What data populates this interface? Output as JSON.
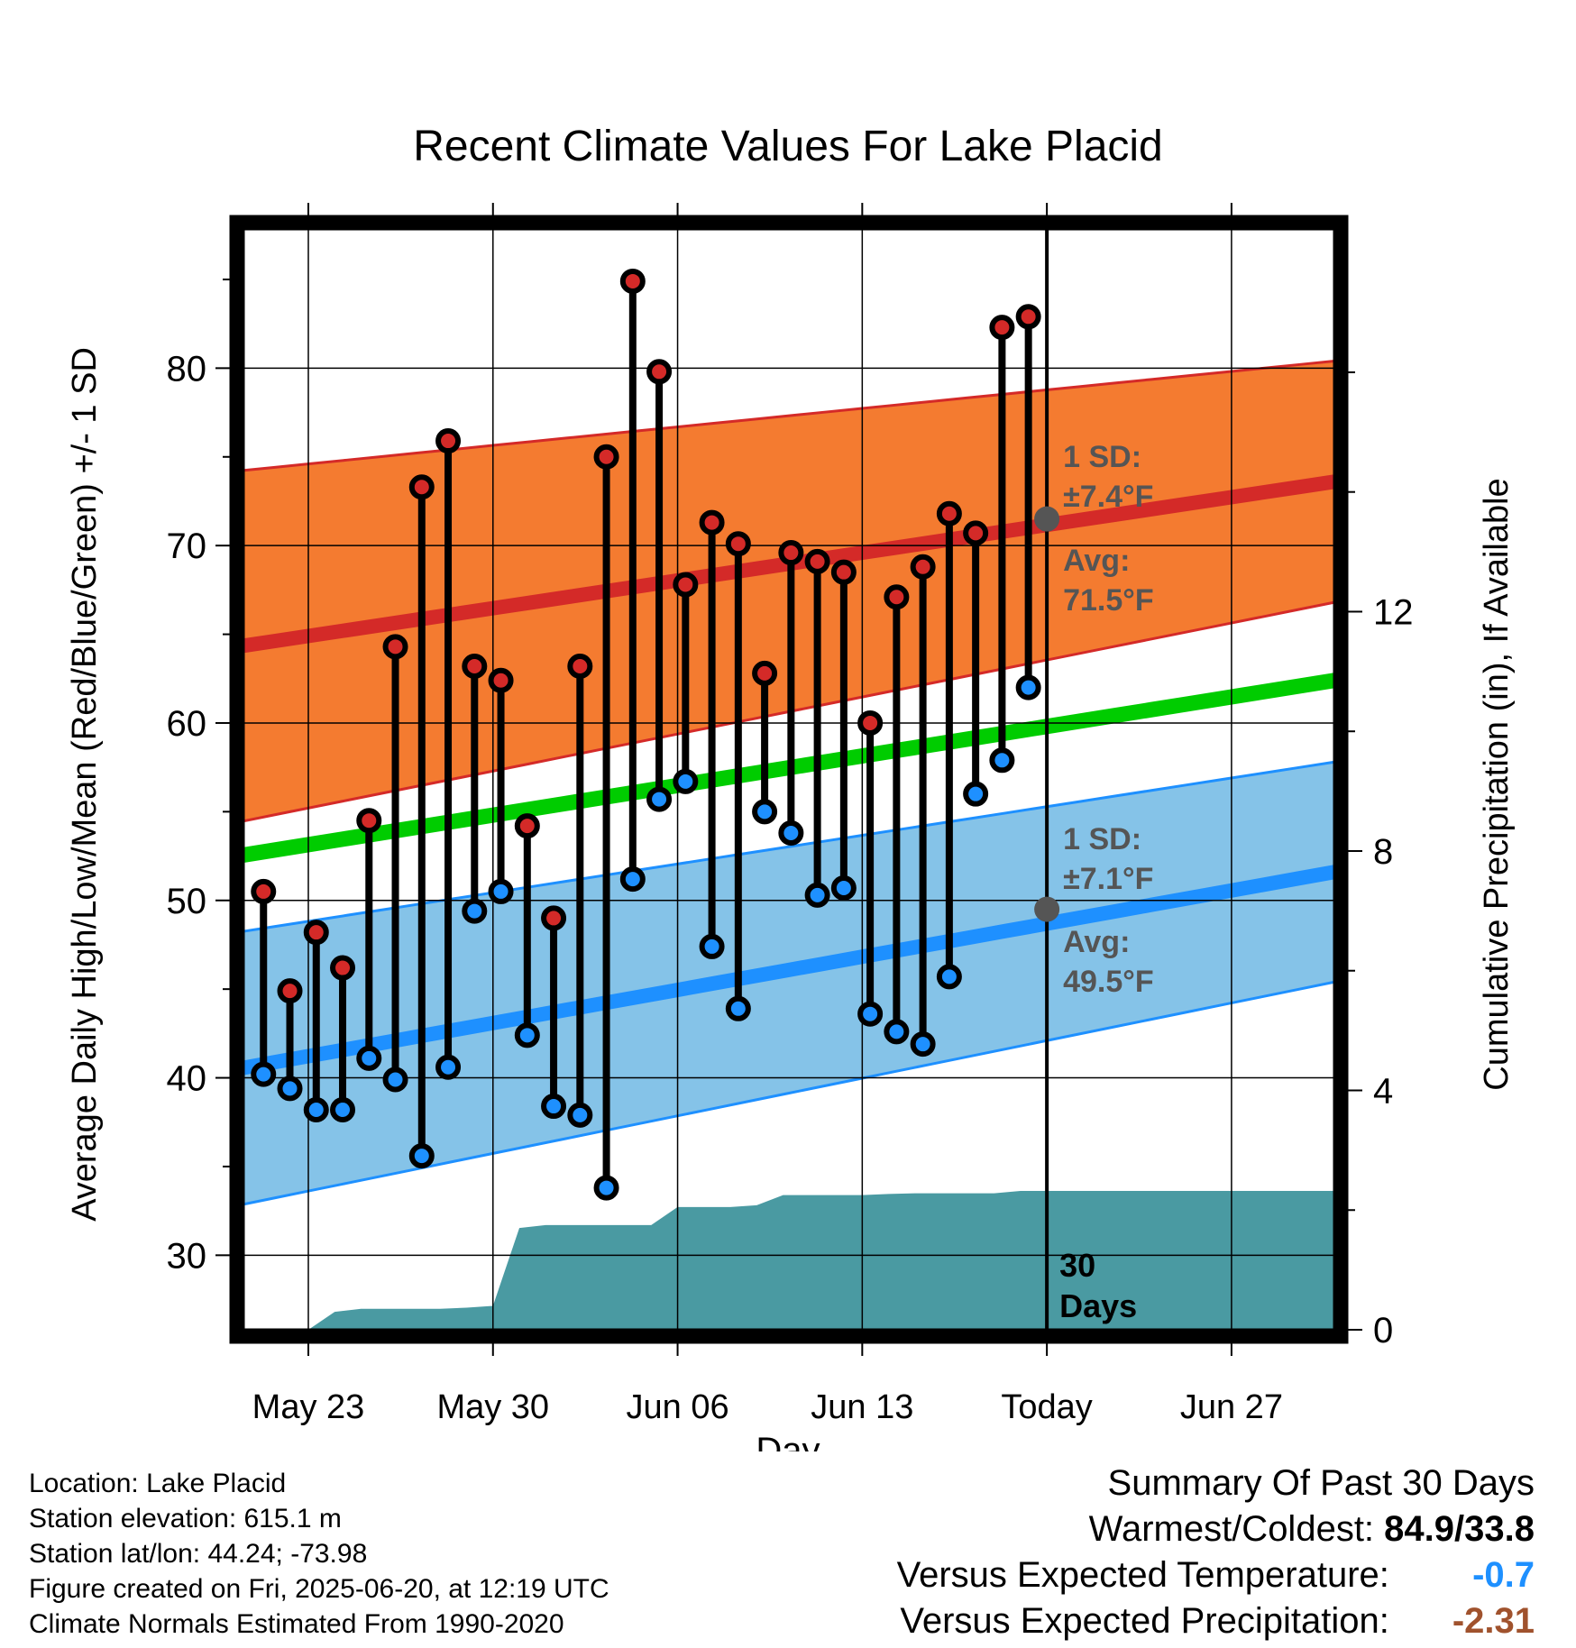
{
  "title": "Recent Climate Values For Lake Placid",
  "colors": {
    "high_band": "#f47b30",
    "high_line": "#d42a28",
    "low_band": "#85c3e8",
    "low_line": "#1e90ff",
    "normal_mean": "#00cc00",
    "precip": "#4a9aa2",
    "marker_high": "#d42a28",
    "marker_low": "#1e90ff",
    "avg_marker": "#555555",
    "annot_gray": "#555555",
    "cold_value": "#1e90ff",
    "dry_value": "#a0522d"
  },
  "chart_data": {
    "type": "line",
    "title": "Recent Climate Values For Lake Placid",
    "xlabel": "Day",
    "ylabel": "Average Daily High/Low/Mean (Red/Blue/Green) +/- 1 SD",
    "y2label": "Cumulative Precipitation (in), If Available",
    "x_tick_labels": [
      "May 23",
      "May 30",
      "Jun 06",
      "Jun 13",
      "Today",
      "Jun 27"
    ],
    "x_tick_days": [
      2,
      9,
      16,
      23,
      30,
      37
    ],
    "xlim": [
      -0.7,
      40.9
    ],
    "ylim": [
      25.8,
      88.2
    ],
    "y_ticks": [
      30,
      40,
      50,
      60,
      70,
      80
    ],
    "y2lim": [
      0,
      18.5
    ],
    "y2_ticks": [
      0,
      4,
      8,
      12
    ],
    "grid": true,
    "today_day": 30,
    "normals": {
      "day_range": [
        -0.7,
        40.9
      ],
      "high_mean": [
        64.3,
        73.6
      ],
      "high_sd": [
        9.9,
        6.8
      ],
      "low_mean": [
        40.5,
        51.6
      ],
      "low_sd": [
        7.7,
        6.2
      ],
      "overall_mean": [
        52.5,
        62.4
      ]
    },
    "daily": {
      "day": [
        1,
        2,
        3,
        4,
        5,
        6,
        7,
        8,
        9,
        10,
        11,
        12,
        13,
        14,
        15,
        16,
        17,
        18,
        19,
        20,
        21,
        22,
        23,
        24,
        25,
        26,
        27,
        28,
        29
      ],
      "high": [
        50.5,
        44.9,
        48.2,
        46.2,
        54.5,
        64.3,
        73.3,
        75.9,
        63.2,
        62.4,
        54.2,
        49.0,
        63.2,
        75.0,
        84.9,
        79.8,
        67.8,
        71.3,
        70.1,
        62.8,
        69.6,
        69.1,
        68.5,
        60.0,
        67.1,
        68.8,
        71.8,
        70.7,
        82.3
      ],
      "low": [
        40.2,
        39.4,
        38.2,
        38.2,
        41.1,
        39.9,
        35.6,
        40.6,
        49.4,
        50.5,
        42.4,
        38.4,
        37.9,
        33.8,
        51.2,
        55.7,
        56.7,
        47.4,
        43.9,
        55.0,
        53.8,
        50.3,
        50.7,
        43.6,
        42.6,
        41.9,
        45.7,
        56.0,
        57.9
      ]
    },
    "extra_daily": {
      "day": 30,
      "high": 82.9,
      "low": 62.0
    },
    "precip_cumulative": {
      "day": [
        1,
        2,
        3,
        4,
        5,
        6,
        7,
        8,
        9,
        10,
        11,
        12,
        13,
        14,
        15,
        16,
        17,
        18,
        19,
        20,
        21,
        22,
        23,
        24,
        25,
        26,
        27,
        28,
        29,
        30,
        31,
        40.9
      ],
      "value": [
        0,
        0,
        0.3,
        0.35,
        0.35,
        0.35,
        0.35,
        0.37,
        0.4,
        1.7,
        1.75,
        1.75,
        1.75,
        1.75,
        1.75,
        2.05,
        2.05,
        2.05,
        2.08,
        2.25,
        2.25,
        2.25,
        2.25,
        2.27,
        2.28,
        2.28,
        2.28,
        2.28,
        2.32,
        2.32,
        2.32,
        2.32
      ]
    },
    "annotations": {
      "high_sd": "1 SD:",
      "high_sd_value": "±7.4°F",
      "high_avg_label": "Avg:",
      "high_avg_value": "71.5°F",
      "high_avg_point": 71.5,
      "low_sd": "1 SD:",
      "low_sd_value": "±7.1°F",
      "low_avg_label": "Avg:",
      "low_avg_value": "49.5°F",
      "low_avg_point": 49.5,
      "days_line1": "30",
      "days_line2": "Days"
    }
  },
  "meta": {
    "location": "Location: Lake Placid",
    "elevation": "Station elevation: 615.1 m",
    "latlon": "Station lat/lon: 44.24; -73.98",
    "created": "Figure created on Fri, 2025-06-20, at 12:19 UTC",
    "normals": "Climate Normals Estimated From 1990-2020"
  },
  "summary": {
    "heading": "Summary Of Past 30 Days",
    "warmest_label": "Warmest/Coldest:",
    "warmest_value": "84.9/33.8",
    "temp_label": "Versus Expected Temperature:",
    "temp_value": "-0.7",
    "precip_label": "Versus Expected Precipitation:",
    "precip_value": "-2.31"
  }
}
